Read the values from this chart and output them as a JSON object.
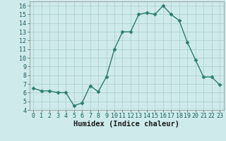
{
  "x": [
    0,
    1,
    2,
    3,
    4,
    5,
    6,
    7,
    8,
    9,
    10,
    11,
    12,
    13,
    14,
    15,
    16,
    17,
    18,
    19,
    20,
    21,
    22,
    23
  ],
  "y": [
    6.5,
    6.2,
    6.2,
    6.0,
    6.0,
    4.5,
    4.8,
    6.8,
    6.1,
    7.8,
    11.0,
    13.0,
    13.0,
    15.0,
    15.2,
    15.0,
    16.0,
    15.0,
    14.3,
    11.8,
    9.8,
    7.8,
    7.8,
    6.9
  ],
  "line_color": "#2e7d6e",
  "marker": "D",
  "marker_size": 2.5,
  "bg_color": "#ceeaea",
  "grid_color": "#aacece",
  "xlabel": "Humidex (Indice chaleur)",
  "xlim": [
    -0.5,
    23.5
  ],
  "ylim": [
    4,
    16.5
  ],
  "yticks": [
    4,
    5,
    6,
    7,
    8,
    9,
    10,
    11,
    12,
    13,
    14,
    15,
    16
  ],
  "xticks": [
    0,
    1,
    2,
    3,
    4,
    5,
    6,
    7,
    8,
    9,
    10,
    11,
    12,
    13,
    14,
    15,
    16,
    17,
    18,
    19,
    20,
    21,
    22,
    23
  ],
  "tick_label_fontsize": 6,
  "xlabel_fontsize": 7.5,
  "line_width": 1.0
}
